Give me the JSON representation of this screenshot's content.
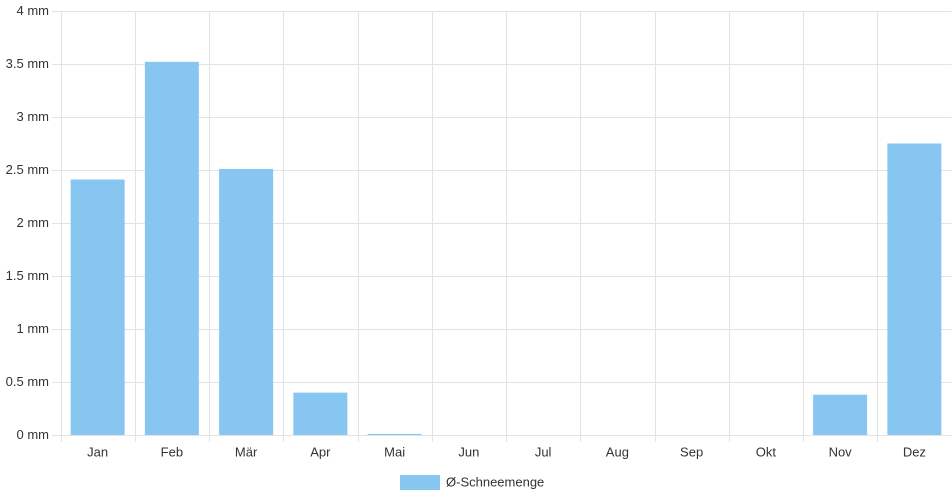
{
  "chart_data": {
    "type": "bar",
    "categories": [
      "Jan",
      "Feb",
      "Mär",
      "Apr",
      "Mai",
      "Jun",
      "Jul",
      "Aug",
      "Sep",
      "Okt",
      "Nov",
      "Dez"
    ],
    "series": [
      {
        "name": "Ø-Schneemenge",
        "color": "#88c6f2",
        "values": [
          2.41,
          3.52,
          2.51,
          0.4,
          0.01,
          0,
          0,
          0,
          0,
          0,
          0.38,
          2.75
        ]
      }
    ],
    "ylim": [
      0,
      4
    ],
    "yticks": [
      {
        "value": 0,
        "label": "0 mm"
      },
      {
        "value": 0.5,
        "label": "0.5 mm"
      },
      {
        "value": 1,
        "label": "1 mm"
      },
      {
        "value": 1.5,
        "label": "1.5 mm"
      },
      {
        "value": 2,
        "label": "2 mm"
      },
      {
        "value": 2.5,
        "label": "2.5 mm"
      },
      {
        "value": 3,
        "label": "3 mm"
      },
      {
        "value": 3.5,
        "label": "3.5 mm"
      },
      {
        "value": 4,
        "label": "4 mm"
      }
    ],
    "grid": true,
    "legend": "bottom"
  }
}
